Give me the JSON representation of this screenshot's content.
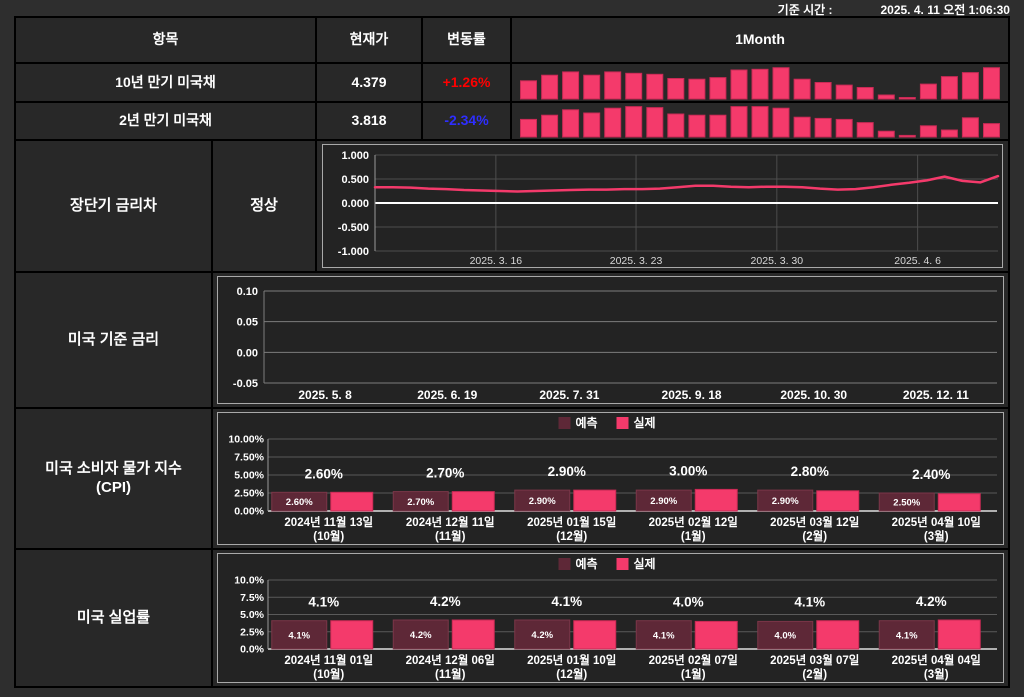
{
  "meta": {
    "time_label": "기준 시간 :",
    "time_value": "2025. 4. 11 오전 1:06:30"
  },
  "colors": {
    "accent_pink": "#f43a6b",
    "bar_stroke": "#c92a55",
    "forecast_maroon": "#5e2837",
    "up_red": "#ff0000",
    "down_blue": "#2e2eff",
    "background": "#2e2e2e",
    "cell_bg": "#282828"
  },
  "table": {
    "headers": {
      "item": "항목",
      "price": "현재가",
      "change": "변동률",
      "month": "1Month"
    },
    "rows": [
      {
        "item": "10년 만기 미국채",
        "price": "4.379",
        "change": "+1.26%",
        "direction": "up"
      },
      {
        "item": "2년 만기 미국채",
        "price": "3.818",
        "change": "-2.34%",
        "direction": "down"
      }
    ]
  },
  "sections": {
    "spread": {
      "label": "장단기 금리차",
      "status": "정상"
    },
    "base_rate": {
      "label": "미국 기준 금리"
    },
    "cpi": {
      "label1": "미국 소비자 물가 지수",
      "label2": "(CPI)"
    },
    "unemployment": {
      "label": "미국 실업률"
    }
  },
  "chart_data": [
    {
      "id": "spark_10y",
      "type": "bar",
      "title": "10년 만기 미국채 1Month",
      "values_norm": [
        0.55,
        0.72,
        0.82,
        0.72,
        0.82,
        0.78,
        0.75,
        0.62,
        0.6,
        0.65,
        0.88,
        0.9,
        0.95,
        0.6,
        0.5,
        0.42,
        0.35,
        0.12,
        0.04,
        0.45,
        0.68,
        0.8,
        0.95
      ]
    },
    {
      "id": "spark_2y",
      "type": "bar",
      "title": "2년 만기 미국채 1Month",
      "values_norm": [
        0.55,
        0.68,
        0.85,
        0.75,
        0.9,
        0.95,
        0.92,
        0.72,
        0.68,
        0.68,
        0.95,
        0.95,
        0.9,
        0.62,
        0.58,
        0.55,
        0.45,
        0.18,
        0.05,
        0.35,
        0.22,
        0.6,
        0.42
      ]
    },
    {
      "id": "spread",
      "type": "line",
      "title": "장단기 금리차",
      "ylim": [
        -1,
        1
      ],
      "y_ticks": [
        {
          "v": 1,
          "label": "1.000"
        },
        {
          "v": 0.5,
          "label": "0.500"
        },
        {
          "v": 0,
          "label": "0.000"
        },
        {
          "v": -0.5,
          "label": "-0.500"
        },
        {
          "v": -1,
          "label": "-1.000"
        }
      ],
      "zero_line": true,
      "x_ticks": [
        {
          "label": "2025. 3. 16",
          "pos": 0.194
        },
        {
          "label": "2025. 3. 23",
          "pos": 0.419
        },
        {
          "label": "2025. 3. 30",
          "pos": 0.645
        },
        {
          "label": "2025. 4. 6",
          "pos": 0.871
        }
      ],
      "values": [
        0.33,
        0.33,
        0.32,
        0.3,
        0.29,
        0.27,
        0.26,
        0.25,
        0.24,
        0.25,
        0.26,
        0.27,
        0.28,
        0.28,
        0.29,
        0.29,
        0.3,
        0.33,
        0.36,
        0.36,
        0.34,
        0.33,
        0.34,
        0.34,
        0.33,
        0.3,
        0.28,
        0.29,
        0.33,
        0.38,
        0.42,
        0.47,
        0.55,
        0.46,
        0.43,
        0.56
      ]
    },
    {
      "id": "base_rate",
      "type": "line",
      "title": "미국 기준 금리",
      "ylim": [
        -0.05,
        0.1
      ],
      "y_ticks": [
        {
          "v": 0.1,
          "label": "0.10"
        },
        {
          "v": 0.05,
          "label": "0.05"
        },
        {
          "v": 0,
          "label": "0.00"
        },
        {
          "v": -0.05,
          "label": "-0.05"
        }
      ],
      "x_tick_labels": [
        "2025. 5. 8",
        "2025. 6. 19",
        "2025. 7. 31",
        "2025. 9. 18",
        "2025. 10. 30",
        "2025. 12. 11"
      ],
      "values": []
    },
    {
      "id": "cpi",
      "type": "bar",
      "title": "미국 소비자 물가 지수 (CPI)",
      "legend": [
        "예측",
        "실제"
      ],
      "ylim": [
        0,
        10
      ],
      "y_ticks": [
        {
          "v": 10,
          "label": "10.00%"
        },
        {
          "v": 7.5,
          "label": "7.50%"
        },
        {
          "v": 5,
          "label": "5.00%"
        },
        {
          "v": 2.5,
          "label": "2.50%"
        },
        {
          "v": 0,
          "label": "0.00%"
        }
      ],
      "categories": [
        [
          "2024년 11월 13일",
          "(10월)"
        ],
        [
          "2024년 12월 11일",
          "(11월)"
        ],
        [
          "2025년 01월 15일",
          "(12월)"
        ],
        [
          "2025년 02월 12일",
          "(1월)"
        ],
        [
          "2025년 03월 12일",
          "(2월)"
        ],
        [
          "2025년 04월 10일",
          "(3월)"
        ]
      ],
      "series": [
        {
          "name": "예측",
          "values": [
            2.6,
            2.7,
            2.9,
            2.9,
            2.9,
            2.5
          ],
          "labels": [
            "2.60%",
            "2.70%",
            "2.90%",
            "2.90%",
            "2.90%",
            "2.50%"
          ]
        },
        {
          "name": "실제",
          "values": [
            2.6,
            2.7,
            2.9,
            3.0,
            2.8,
            2.4
          ],
          "labels": [
            "2.60%",
            "2.70%",
            "2.90%",
            "3.00%",
            "2.80%",
            "2.40%"
          ]
        }
      ]
    },
    {
      "id": "unemployment",
      "type": "bar",
      "title": "미국 실업률",
      "legend": [
        "예측",
        "실제"
      ],
      "ylim": [
        0,
        10
      ],
      "y_ticks": [
        {
          "v": 10,
          "label": "10.0%"
        },
        {
          "v": 7.5,
          "label": "7.5%"
        },
        {
          "v": 5,
          "label": "5.0%"
        },
        {
          "v": 2.5,
          "label": "2.5%"
        },
        {
          "v": 0,
          "label": "0.0%"
        }
      ],
      "categories": [
        [
          "2024년 11월 01일",
          "(10월)"
        ],
        [
          "2024년 12월 06일",
          "(11월)"
        ],
        [
          "2025년 01월 10일",
          "(12월)"
        ],
        [
          "2025년 02월 07일",
          "(1월)"
        ],
        [
          "2025년 03월 07일",
          "(2월)"
        ],
        [
          "2025년 04월 04일",
          "(3월)"
        ]
      ],
      "series": [
        {
          "name": "예측",
          "values": [
            4.1,
            4.2,
            4.2,
            4.1,
            4.0,
            4.1
          ],
          "labels": [
            "4.1%",
            "4.2%",
            "4.2%",
            "4.1%",
            "4.0%",
            "4.1%"
          ]
        },
        {
          "name": "실제",
          "values": [
            4.1,
            4.2,
            4.1,
            4.0,
            4.1,
            4.2
          ],
          "labels": [
            "4.1%",
            "4.2%",
            "4.1%",
            "4.0%",
            "4.1%",
            "4.2%"
          ]
        }
      ]
    }
  ]
}
